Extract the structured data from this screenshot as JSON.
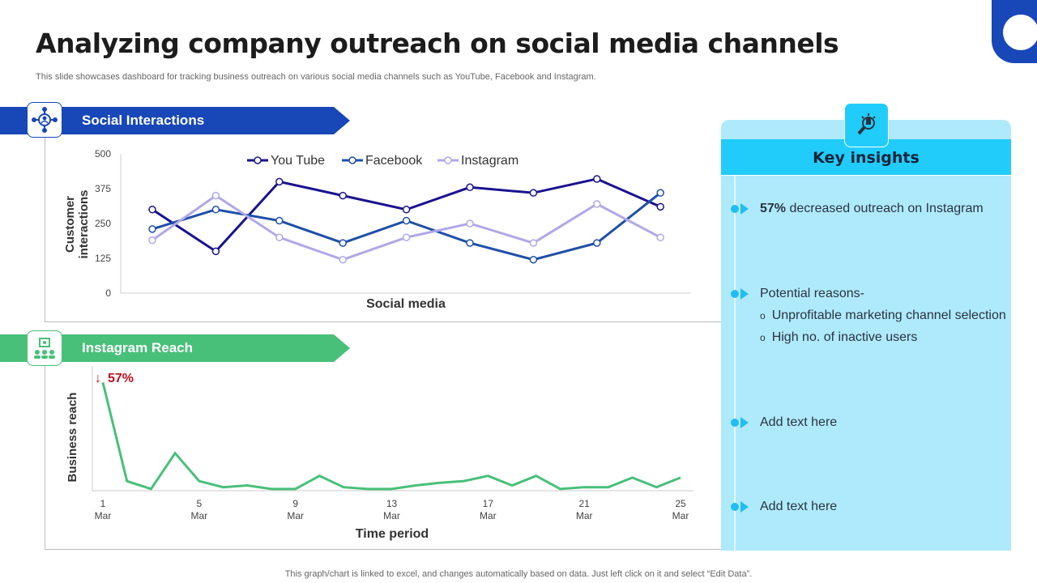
{
  "title": "Analyzing company outreach on social media channels",
  "subtitle": "This slide showcases dashboard for tracking business outreach on various social media channels such as YouTube, Facebook and Instagram.",
  "sections": {
    "social": "Social Interactions",
    "instagram": "Instagram Reach"
  },
  "insights": {
    "title": "Key insights",
    "items": [
      {
        "bold": "57%",
        "text": " decreased outreach  on Instagram"
      },
      {
        "text": "Potential reasons-",
        "subs": [
          "Unprofitable marketing channel selection",
          "High no. of inactive users"
        ]
      },
      {
        "text": "Add text here"
      },
      {
        "text": "Add text here"
      }
    ]
  },
  "footer": "This graph/chart is linked to excel,  and changes automatically based on data. Just left click on it and select “Edit Data”.",
  "colors": {
    "blue": "#1847b8",
    "green": "#48c07a",
    "youtube": "#1a1290",
    "facebook": "#1f4fa8",
    "instagram": "#b0a8e8",
    "panel": "#aeeafc",
    "panel_header": "#22ccfa",
    "down": "#c0111f"
  },
  "chart_data": [
    {
      "type": "line",
      "xlabel": "Social media",
      "ylabel": "Customer interactions",
      "ylim": [
        0,
        500
      ],
      "yticks": [
        0,
        125,
        250,
        375,
        500
      ],
      "grid": false,
      "legend": "top",
      "series": [
        {
          "name": "You Tube",
          "values": [
            300,
            150,
            400,
            350,
            300,
            380,
            360,
            410,
            310
          ]
        },
        {
          "name": "Facebook",
          "values": [
            230,
            300,
            260,
            180,
            260,
            180,
            120,
            180,
            360
          ]
        },
        {
          "name": "Instagram",
          "values": [
            190,
            350,
            200,
            120,
            200,
            250,
            180,
            320,
            200
          ]
        }
      ]
    },
    {
      "type": "line",
      "xlabel": "Time period",
      "ylabel": "Business reach",
      "annotation": "57%",
      "xticks": [
        {
          "day": 1,
          "l1": "1",
          "l2": "Mar"
        },
        {
          "day": 5,
          "l1": "5",
          "l2": "Mar"
        },
        {
          "day": 9,
          "l1": "9",
          "l2": "Mar"
        },
        {
          "day": 13,
          "l1": "13",
          "l2": "Mar"
        },
        {
          "day": 17,
          "l1": "17",
          "l2": "Mar"
        },
        {
          "day": 21,
          "l1": "21",
          "l2": "Mar"
        },
        {
          "day": 25,
          "l1": "25",
          "l2": "Mar"
        }
      ],
      "x": [
        1,
        2,
        3,
        4,
        5,
        6,
        7,
        8,
        9,
        10,
        11,
        12,
        13,
        14,
        15,
        16,
        17,
        18,
        19,
        20,
        21,
        22,
        23,
        24,
        25
      ],
      "values": [
        124,
        11,
        2,
        43,
        11,
        4,
        6,
        2,
        2,
        17,
        4,
        2,
        2,
        6,
        9,
        11,
        17,
        6,
        17,
        2,
        4,
        4,
        15,
        4,
        15
      ]
    }
  ]
}
